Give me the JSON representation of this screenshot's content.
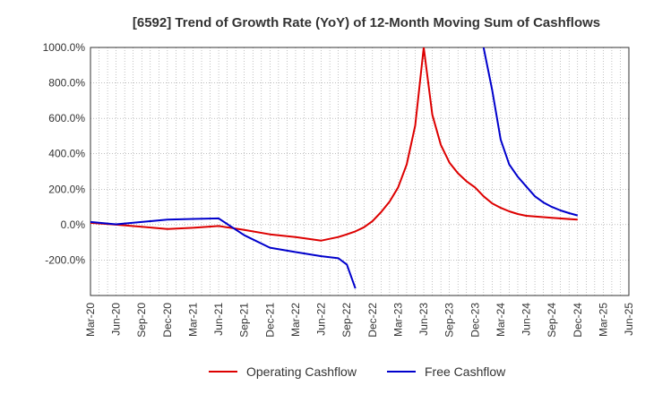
{
  "chart_data": {
    "type": "line",
    "title": "[6592]  Trend of Growth Rate (YoY) of 12-Month Moving Sum of Cashflows",
    "xlabel": "",
    "ylabel": "",
    "x_ticks": [
      "Mar-20",
      "Jun-20",
      "Sep-20",
      "Dec-20",
      "Mar-21",
      "Jun-21",
      "Sep-21",
      "Dec-21",
      "Mar-22",
      "Jun-22",
      "Sep-22",
      "Dec-22",
      "Mar-23",
      "Jun-23",
      "Sep-23",
      "Dec-23",
      "Mar-24",
      "Jun-24",
      "Sep-24",
      "Dec-24",
      "Mar-25",
      "Jun-25"
    ],
    "y_ticks": [
      1000,
      800,
      600,
      400,
      200,
      0,
      -200
    ],
    "y_tick_labels": [
      "1000.0%",
      "800.0%",
      "600.0%",
      "400.0%",
      "200.0%",
      "0.0%",
      "-200.0%"
    ],
    "ylim": [
      -400,
      1000
    ],
    "grid": true,
    "legend_position": "bottom",
    "series": [
      {
        "name": "Operating Cashflow",
        "color": "#dd0000",
        "points": [
          [
            "Mar-20",
            10
          ],
          [
            "Jun-20",
            0
          ],
          [
            "Sep-20",
            -12
          ],
          [
            "Dec-20",
            -25
          ],
          [
            "Mar-21",
            -18
          ],
          [
            "Jun-21",
            -8
          ],
          [
            "Sep-21",
            -30
          ],
          [
            "Dec-21",
            -55
          ],
          [
            "Mar-22",
            -70
          ],
          [
            "Jun-22",
            -90
          ],
          [
            "Aug-22",
            -70
          ],
          [
            "Sep-22",
            -55
          ],
          [
            "Oct-22",
            -38
          ],
          [
            "Nov-22",
            -15
          ],
          [
            "Dec-22",
            20
          ],
          [
            "Jan-23",
            70
          ],
          [
            "Feb-23",
            130
          ],
          [
            "Mar-23",
            210
          ],
          [
            "Apr-23",
            340
          ],
          [
            "May-23",
            560
          ],
          [
            "Jun-23",
            1000
          ],
          [
            "Jul-23",
            620
          ],
          [
            "Aug-23",
            450
          ],
          [
            "Sep-23",
            350
          ],
          [
            "Oct-23",
            290
          ],
          [
            "Nov-23",
            245
          ],
          [
            "Dec-23",
            210
          ],
          [
            "Jan-24",
            160
          ],
          [
            "Feb-24",
            120
          ],
          [
            "Mar-24",
            95
          ],
          [
            "Apr-24",
            75
          ],
          [
            "May-24",
            60
          ],
          [
            "Jun-24",
            50
          ],
          [
            "Sep-24",
            38
          ],
          [
            "Dec-24",
            28
          ]
        ]
      },
      {
        "name": "Free Cashflow",
        "color": "#0000cc",
        "points": [
          [
            "Mar-20",
            15
          ],
          [
            "Jun-20",
            2
          ],
          [
            "Sep-20",
            15
          ],
          [
            "Dec-20",
            28
          ],
          [
            "Mar-21",
            32
          ],
          [
            "Jun-21",
            35
          ],
          [
            "Sep-21",
            -60
          ],
          [
            "Dec-21",
            -130
          ],
          [
            "Mar-22",
            -155
          ],
          [
            "Jun-22",
            -178
          ],
          [
            "Aug-22",
            -190
          ],
          [
            "Sep-22",
            -225
          ],
          [
            "Oct-22",
            -360
          ],
          [
            "Jan-24",
            1000
          ],
          [
            "Feb-24",
            760
          ],
          [
            "Mar-24",
            480
          ],
          [
            "Apr-24",
            340
          ],
          [
            "May-24",
            270
          ],
          [
            "Jun-24",
            215
          ],
          [
            "Jul-24",
            160
          ],
          [
            "Aug-24",
            125
          ],
          [
            "Sep-24",
            100
          ],
          [
            "Oct-24",
            80
          ],
          [
            "Nov-24",
            65
          ],
          [
            "Dec-24",
            52
          ]
        ],
        "gaps_after": [
          "Oct-22"
        ]
      }
    ]
  }
}
